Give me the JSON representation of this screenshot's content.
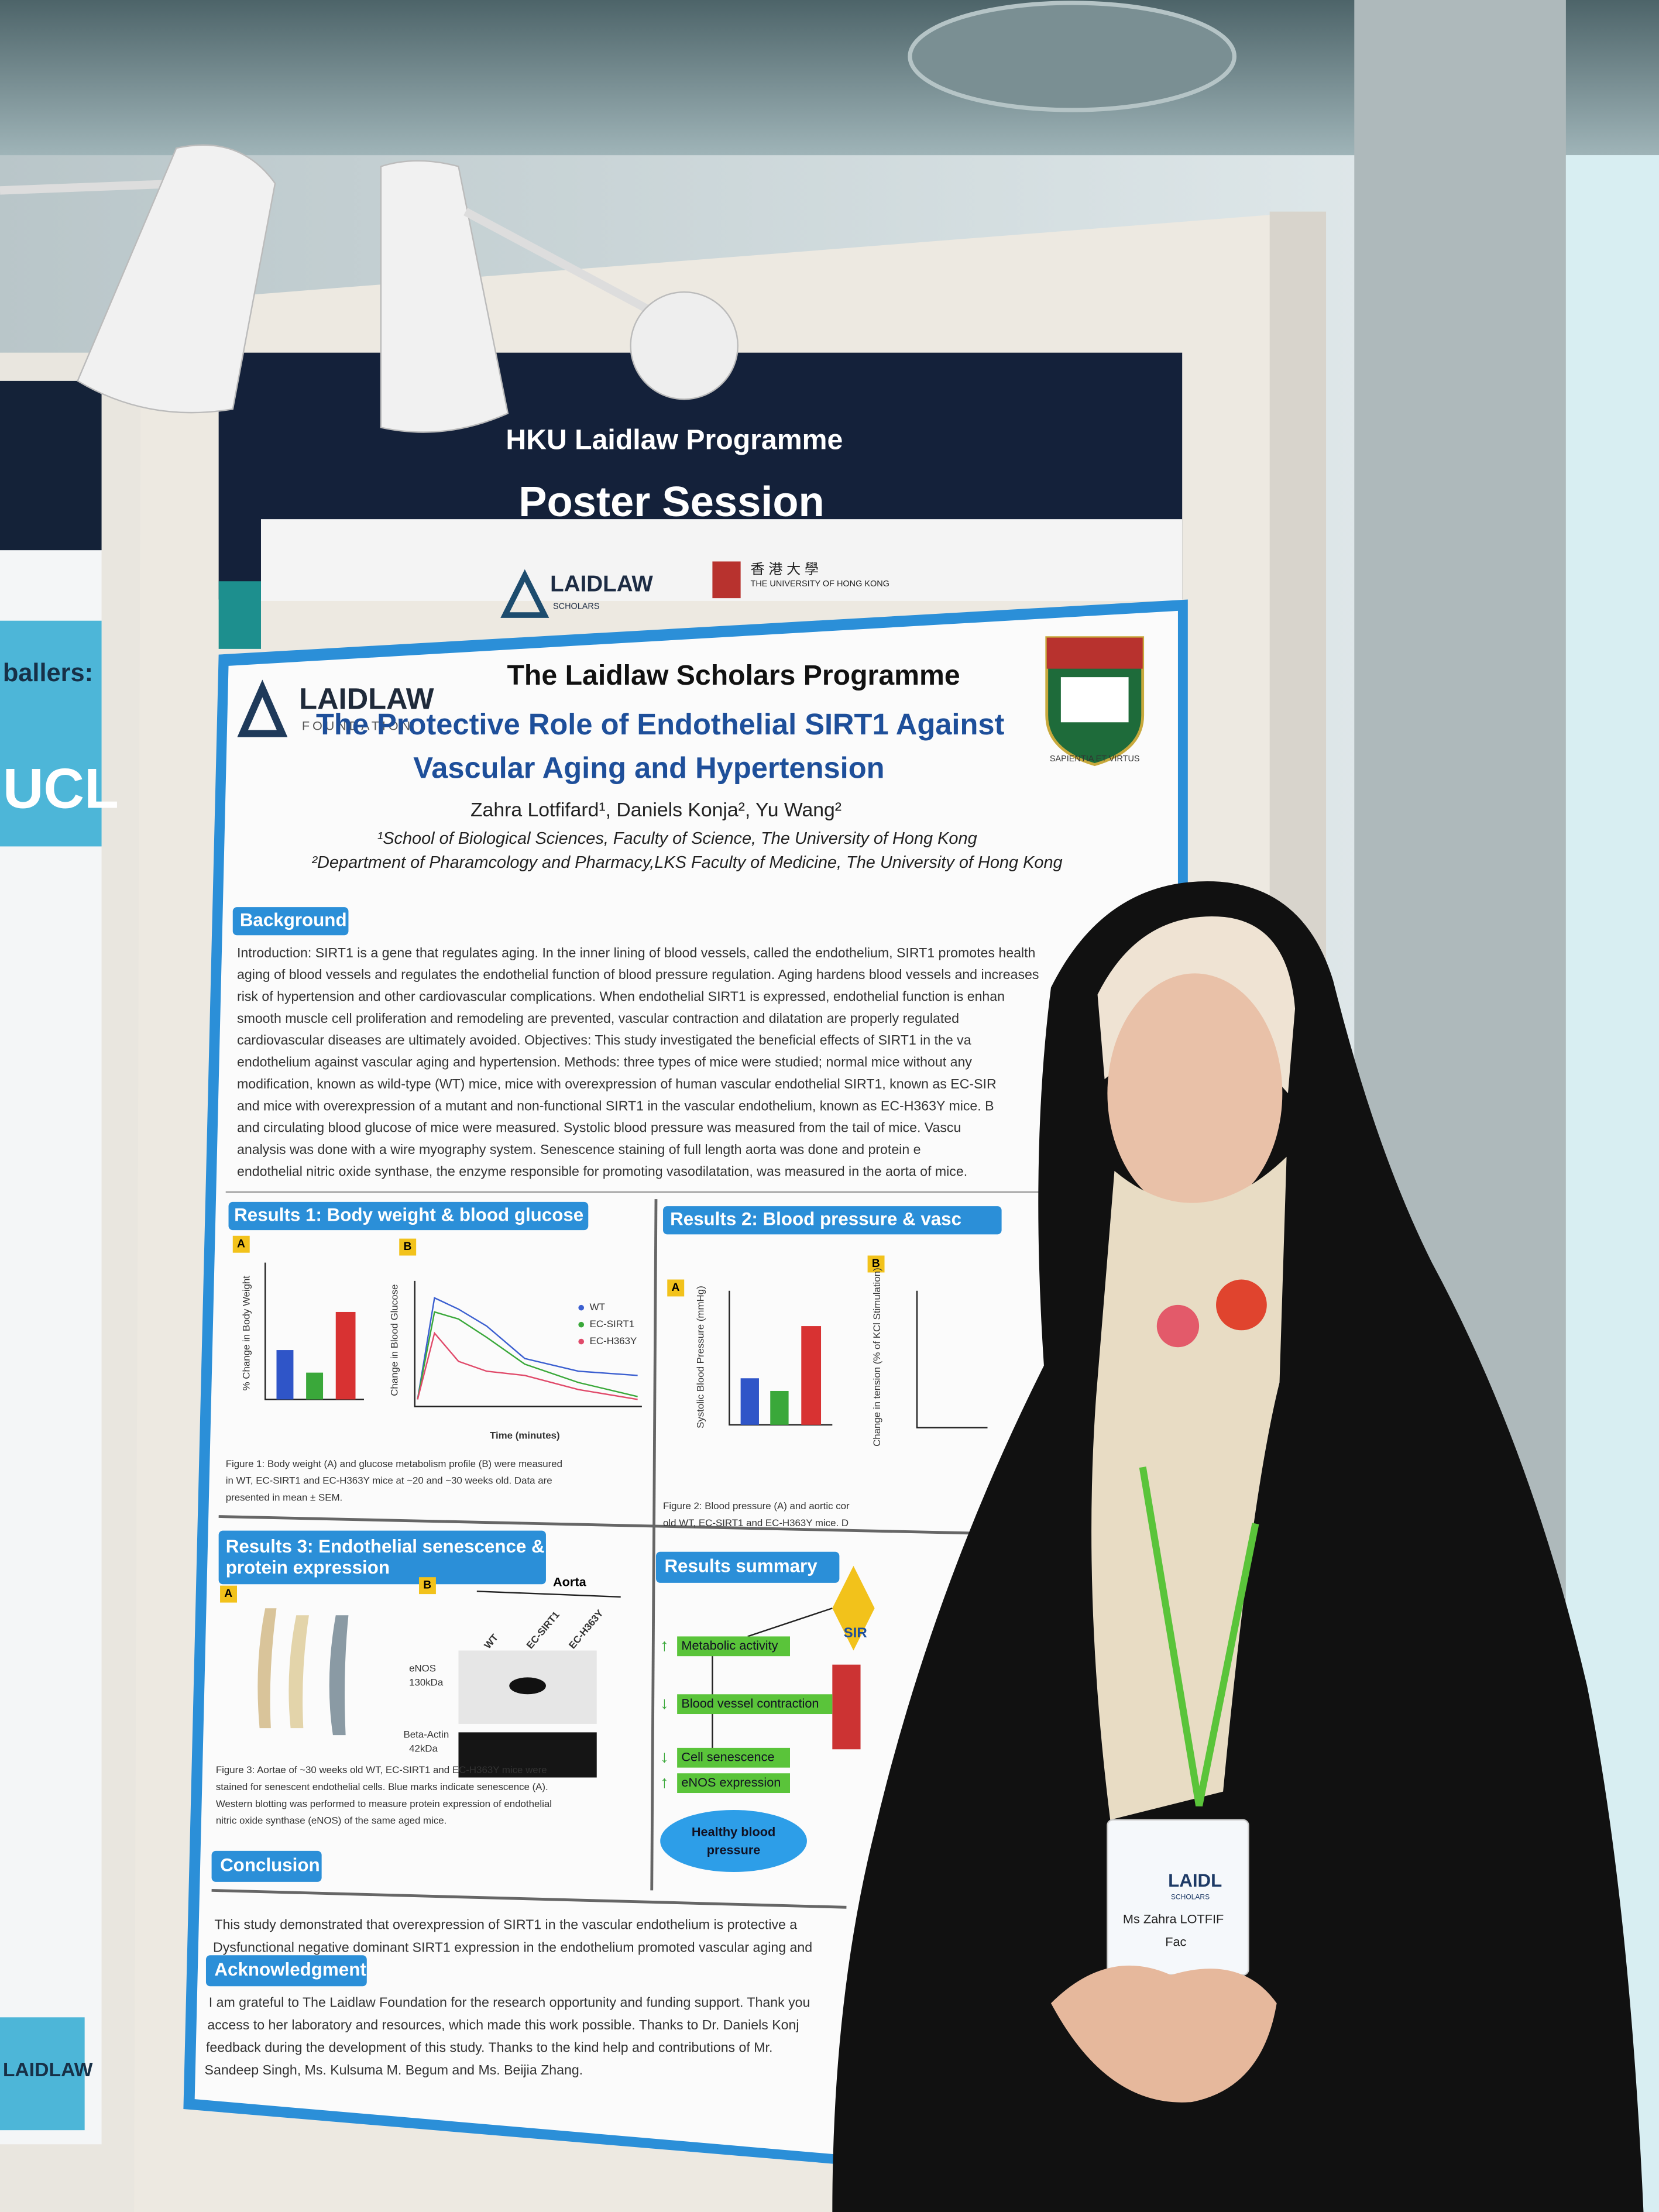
{
  "left_poster": {
    "heading": "ballers:",
    "big": "UCL",
    "logo": "LAIDLAW"
  },
  "banner": {
    "line1": "HKU Laidlaw Programme",
    "line2": "Poster Session",
    "logo_left": "LAIDLAW",
    "logo_left_sub": "SCHOLARS",
    "logo_right_cn": "香 港 大 學",
    "logo_right_en": "THE UNIVERSITY OF HONG KONG"
  },
  "poster": {
    "logo": "LAIDLAW",
    "logo_sub": "FOUNDATION",
    "programme": "The Laidlaw Scholars Programme",
    "title_line1": "The Protective Role of Endothelial SIRT1 Against",
    "title_line2": "Vascular Aging and Hypertension",
    "authors": "Zahra Lotfifard¹, Daniels Konja², Yu Wang²",
    "affiliation1": "¹School of Biological Sciences, Faculty of Science, The University of Hong Kong",
    "affiliation2": "²Department of Pharamcology and Pharmacy,LKS Faculty of Medicine, The University of Hong Kong",
    "crest_motto": "SAPIENTIA ET VIRTUS",
    "background": {
      "heading": "Background",
      "lines": [
        "Introduction: SIRT1 is a gene that regulates aging. In the inner lining of blood vessels, called the endothelium, SIRT1 promotes health",
        "aging of blood vessels and regulates the endothelial function of blood pressure regulation. Aging hardens blood vessels and increases",
        "risk of hypertension and other cardiovascular complications. When endothelial SIRT1 is expressed, endothelial function is enhan",
        "smooth muscle cell proliferation and remodeling are prevented, vascular contraction and dilatation are properly regulated",
        "cardiovascular diseases are ultimately avoided. Objectives: This study investigated the beneficial effects of SIRT1 in the va",
        "endothelium against vascular aging and hypertension. Methods: three types of mice were studied; normal mice without any",
        "modification, known as wild-type (WT) mice, mice with overexpression of human vascular endothelial SIRT1, known as EC-SIR",
        "and mice with overexpression of a mutant and non-functional SIRT1 in the vascular endothelium, known as EC-H363Y mice. B",
        "and circulating blood glucose of mice were measured. Systolic blood pressure was measured from the tail of mice. Vascu",
        "analysis was done with a wire myography system. Senescence staining of full length aorta was done and protein e",
        "endothelial nitric oxide synthase, the enzyme responsible for promoting vasodilatation, was measured in the aorta of mice."
      ]
    },
    "results1": {
      "heading": "Results 1: Body weight & blood glucose",
      "panel_a": "A",
      "panel_b": "B",
      "ylabel_a": "% Change in Body Weight",
      "ylabel_b": "Change in Blood Glucose",
      "xlabel_b": "Time (minutes)",
      "legend": [
        "WT",
        "EC-SIRT1",
        "EC-H363Y"
      ],
      "caption": [
        "Figure 1: Body weight (A) and glucose metabolism profile (B) were measured",
        "in WT, EC-SIRT1 and EC-H363Y mice at ~20 and ~30 weeks old. Data are",
        "presented in mean ± SEM."
      ]
    },
    "results2": {
      "heading": "Results 2: Blood pressure & vasc",
      "panel_a": "A",
      "panel_b": "B",
      "ylabel_a": "Systolic Blood Pressure (mmHg)",
      "ylabel_b": "Change in tension (% of KCl Stimulation)",
      "caption": [
        "Figure 2: Blood pressure (A) and aortic cor",
        "old WT, EC-SIRT1 and EC-H363Y mice. D"
      ]
    },
    "results3": {
      "heading_line1": "Results 3: Endothelial senescence &",
      "heading_line2": "protein expression",
      "panel_a": "A",
      "panel_b": "B",
      "aorta": "Aorta",
      "lanes": [
        "WT",
        "EC-SIRT1",
        "EC-H363Y"
      ],
      "enos": "eNOS",
      "enos_kda": "130kDa",
      "actin": "Beta-Actin",
      "actin_kda": "42kDa",
      "caption": [
        "Figure 3: Aortae of ~30 weeks old WT, EC-SIRT1 and EC-H363Y mice were",
        "stained for senescent endothelial cells. Blue marks indicate senescence (A).",
        "Western blotting was performed to measure protein expression of endothelial",
        "nitric oxide synthase (eNOS) of the same aged mice."
      ]
    },
    "summary": {
      "heading": "Results summary",
      "badge": "SIR",
      "items": [
        "Metabolic activity",
        "Blood vessel contraction",
        "Cell senescence",
        "eNOS expression"
      ],
      "cloud_line1": "Healthy blood",
      "cloud_line2": "pressure"
    },
    "conclusion": {
      "heading": "Conclusion",
      "lines": [
        "This study demonstrated that overexpression of SIRT1 in the vascular endothelium is protective a",
        "Dysfunctional negative dominant SIRT1 expression in the endothelium promoted vascular aging and"
      ]
    },
    "acknowledgment": {
      "heading": "Acknowledgment",
      "lines": [
        "I am grateful to The Laidlaw Foundation for the research opportunity and funding support. Thank you",
        "access to her laboratory and resources, which made this work possible. Thanks to Dr. Daniels Konj",
        "feedback during the development of this study. Thanks to the kind help and contributions of Mr.",
        "Sandeep Singh, Ms. Kulsuma M. Begum and Ms. Beijia Zhang."
      ]
    }
  },
  "badge": {
    "logo": "LAIDL",
    "logo_sub": "SCHOLARS",
    "name": "Ms Zahra LOTFIF",
    "line2": "Fac"
  }
}
